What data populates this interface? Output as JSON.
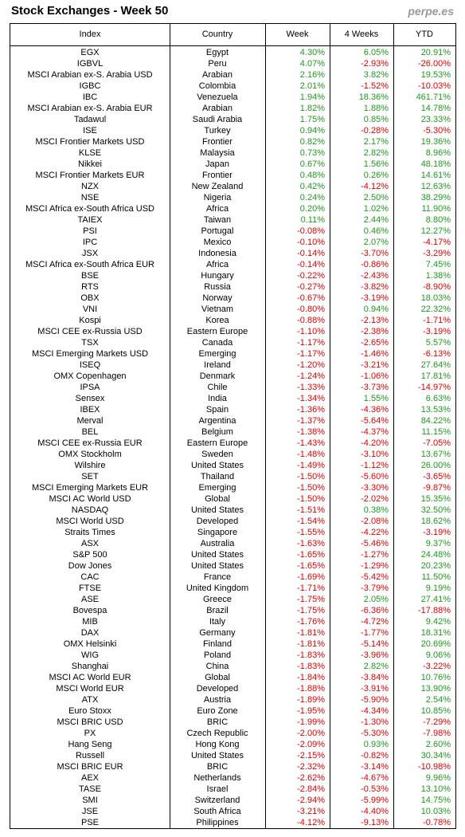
{
  "header": {
    "title": "Stock Exchanges - Week 50",
    "site": "perpe.es"
  },
  "table": {
    "columns": [
      "Index",
      "Country",
      "Week",
      "4 Weeks",
      "YTD"
    ],
    "rows": [
      [
        "EGX",
        "Egypt",
        "4.30%",
        "6.05%",
        "20.91%"
      ],
      [
        "IGBVL",
        "Peru",
        "4.07%",
        "-2.93%",
        "-26.00%"
      ],
      [
        "MSCI Arabian ex-S. Arabia USD",
        "Arabian",
        "2.16%",
        "3.82%",
        "19.53%"
      ],
      [
        "IGBC",
        "Colombia",
        "2.01%",
        "-1.52%",
        "-10.03%"
      ],
      [
        "IBC",
        "Venezuela",
        "1.94%",
        "18.36%",
        "461.71%"
      ],
      [
        "MSCI Arabian ex-S. Arabia EUR",
        "Arabian",
        "1.82%",
        "1.88%",
        "14.78%"
      ],
      [
        "Tadawul",
        "Saudi Arabia",
        "1.75%",
        "0.85%",
        "23.33%"
      ],
      [
        "ISE",
        "Turkey",
        "0.94%",
        "-0.28%",
        "-5.30%"
      ],
      [
        "MSCI Frontier Markets USD",
        "Frontier",
        "0.82%",
        "2.17%",
        "19.36%"
      ],
      [
        "KLSE",
        "Malaysia",
        "0.73%",
        "2.82%",
        "8.96%"
      ],
      [
        "Nikkei",
        "Japan",
        "0.67%",
        "1.56%",
        "48.18%"
      ],
      [
        "MSCI Frontier Markets EUR",
        "Frontier",
        "0.48%",
        "0.26%",
        "14.61%"
      ],
      [
        "NZX",
        "New Zealand",
        "0.42%",
        "-4.12%",
        "12.63%"
      ],
      [
        "NSE",
        "Nigeria",
        "0.24%",
        "2.50%",
        "38.29%"
      ],
      [
        "MSCI Africa ex-South Africa USD",
        "Africa",
        "0.20%",
        "1.02%",
        "11.90%"
      ],
      [
        "TAIEX",
        "Taiwan",
        "0.11%",
        "2.44%",
        "8.80%"
      ],
      [
        "PSI",
        "Portugal",
        "-0.08%",
        "0.46%",
        "12.27%"
      ],
      [
        "IPC",
        "Mexico",
        "-0.10%",
        "2.07%",
        "-4.17%"
      ],
      [
        "JSX",
        "Indonesia",
        "-0.14%",
        "-3.70%",
        "-3.29%"
      ],
      [
        "MSCI Africa ex-South Africa EUR",
        "Africa",
        "-0.14%",
        "-0.86%",
        "7.45%"
      ],
      [
        "BSE",
        "Hungary",
        "-0.22%",
        "-2.43%",
        "1.38%"
      ],
      [
        "RTS",
        "Russia",
        "-0.27%",
        "-3.82%",
        "-8.90%"
      ],
      [
        "OBX",
        "Norway",
        "-0.67%",
        "-3.19%",
        "18.03%"
      ],
      [
        "VNI",
        "Vietnam",
        "-0.80%",
        "0.94%",
        "22.32%"
      ],
      [
        "Kospi",
        "Korea",
        "-0.88%",
        "-2.13%",
        "-1.71%"
      ],
      [
        "MSCI CEE ex-Russia USD",
        "Eastern Europe",
        "-1.10%",
        "-2.38%",
        "-3.19%"
      ],
      [
        "TSX",
        "Canada",
        "-1.17%",
        "-2.65%",
        "5.57%"
      ],
      [
        "MSCI Emerging Markets USD",
        "Emerging",
        "-1.17%",
        "-1.46%",
        "-6.13%"
      ],
      [
        "ISEQ",
        "Ireland",
        "-1.20%",
        "-3.21%",
        "27.64%"
      ],
      [
        "OMX Copenhagen",
        "Denmark",
        "-1.24%",
        "-1.06%",
        "17.81%"
      ],
      [
        "IPSA",
        "Chile",
        "-1.33%",
        "-3.73%",
        "-14.97%"
      ],
      [
        "Sensex",
        "India",
        "-1.34%",
        "1.55%",
        "6.63%"
      ],
      [
        "IBEX",
        "Spain",
        "-1.36%",
        "-4.36%",
        "13.53%"
      ],
      [
        "Merval",
        "Argentina",
        "-1.37%",
        "-5.64%",
        "84.22%"
      ],
      [
        "BEL",
        "Belgium",
        "-1.38%",
        "-4.37%",
        "11.15%"
      ],
      [
        "MSCI CEE ex-Russia EUR",
        "Eastern Europe",
        "-1.43%",
        "-4.20%",
        "-7.05%"
      ],
      [
        "OMX Stockholm",
        "Sweden",
        "-1.48%",
        "-3.10%",
        "13.67%"
      ],
      [
        "Wilshire",
        "United States",
        "-1.49%",
        "-1.12%",
        "26.00%"
      ],
      [
        "SET",
        "Thailand",
        "-1.50%",
        "-5.60%",
        "-3.65%"
      ],
      [
        "MSCI Emerging Markets EUR",
        "Emerging",
        "-1.50%",
        "-3.30%",
        "-9.87%"
      ],
      [
        "MSCI AC World USD",
        "Global",
        "-1.50%",
        "-2.02%",
        "15.35%"
      ],
      [
        "NASDAQ",
        "United States",
        "-1.51%",
        "0.38%",
        "32.50%"
      ],
      [
        "MSCI World USD",
        "Developed",
        "-1.54%",
        "-2.08%",
        "18.62%"
      ],
      [
        "Straits Times",
        "Singapore",
        "-1.55%",
        "-4.22%",
        "-3.19%"
      ],
      [
        "ASX",
        "Australia",
        "-1.63%",
        "-5.46%",
        "9.37%"
      ],
      [
        "S&P 500",
        "United States",
        "-1.65%",
        "-1.27%",
        "24.48%"
      ],
      [
        "Dow Jones",
        "United States",
        "-1.65%",
        "-1.29%",
        "20.23%"
      ],
      [
        "CAC",
        "France",
        "-1.69%",
        "-5.42%",
        "11.50%"
      ],
      [
        "FTSE",
        "United Kingdom",
        "-1.71%",
        "-3.79%",
        "9.19%"
      ],
      [
        "ASE",
        "Greece",
        "-1.75%",
        "2.05%",
        "27.41%"
      ],
      [
        "Bovespa",
        "Brazil",
        "-1.75%",
        "-6.36%",
        "-17.88%"
      ],
      [
        "MIB",
        "Italy",
        "-1.76%",
        "-4.72%",
        "9.42%"
      ],
      [
        "DAX",
        "Germany",
        "-1.81%",
        "-1.77%",
        "18.31%"
      ],
      [
        "OMX Helsinki",
        "Finland",
        "-1.81%",
        "-5.14%",
        "20.69%"
      ],
      [
        "WIG",
        "Poland",
        "-1.83%",
        "-3.96%",
        "9.06%"
      ],
      [
        "Shanghai",
        "China",
        "-1.83%",
        "2.82%",
        "-3.22%"
      ],
      [
        "MSCI AC World EUR",
        "Global",
        "-1.84%",
        "-3.84%",
        "10.76%"
      ],
      [
        "MSCI World EUR",
        "Developed",
        "-1.88%",
        "-3.91%",
        "13.90%"
      ],
      [
        "ATX",
        "Austria",
        "-1.89%",
        "-5.90%",
        "2.54%"
      ],
      [
        "Euro Stoxx",
        "Euro Zone",
        "-1.95%",
        "-4.34%",
        "10.85%"
      ],
      [
        "MSCI BRIC USD",
        "BRIC",
        "-1.99%",
        "-1.30%",
        "-7.29%"
      ],
      [
        "PX",
        "Czech Republic",
        "-2.00%",
        "-5.30%",
        "-7.98%"
      ],
      [
        "Hang Seng",
        "Hong Kong",
        "-2.09%",
        "0.93%",
        "2.60%"
      ],
      [
        "Russell",
        "United States",
        "-2.15%",
        "-0.82%",
        "30.34%"
      ],
      [
        "MSCI BRIC EUR",
        "BRIC",
        "-2.32%",
        "-3.14%",
        "-10.98%"
      ],
      [
        "AEX",
        "Netherlands",
        "-2.62%",
        "-4.67%",
        "9.96%"
      ],
      [
        "TASE",
        "Israel",
        "-2.84%",
        "-0.53%",
        "13.10%"
      ],
      [
        "SMI",
        "Switzerland",
        "-2.94%",
        "-5.99%",
        "14.75%"
      ],
      [
        "JSE",
        "South Africa",
        "-3.21%",
        "-4.40%",
        "10.03%"
      ],
      [
        "PSE",
        "Philippines",
        "-4.12%",
        "-9.13%",
        "-0.78%"
      ]
    ]
  }
}
